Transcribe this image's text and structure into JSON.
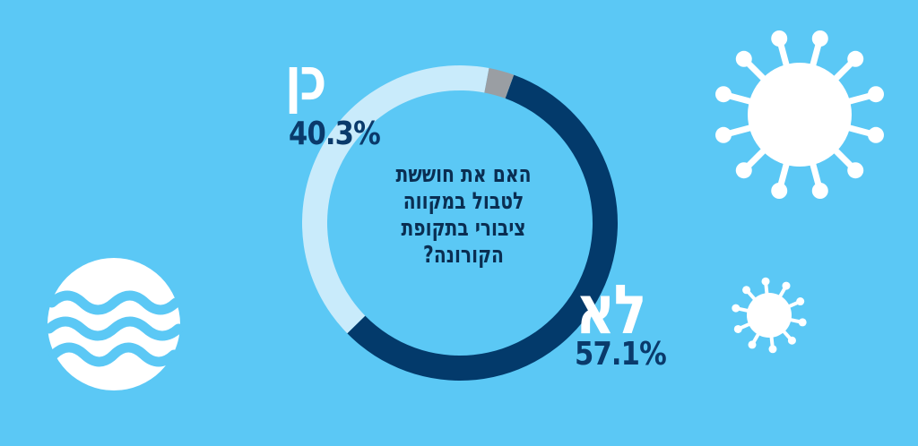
{
  "chart_data": {
    "type": "pie",
    "style": "donut",
    "title": "האם את חוששת לטבול במקווה ציבורי בתקופת הקורונה?",
    "slices": [
      {
        "label": "לא",
        "value": 57.1,
        "value_text": "57.1%",
        "color": "#033a6b"
      },
      {
        "label": "כן",
        "value": 40.3,
        "value_text": "40.3%",
        "color": "#c9ebfb"
      },
      {
        "label": "",
        "value": 2.6,
        "value_text": "",
        "color": "#9a9ea3"
      }
    ],
    "start_angle_deg": 20,
    "direction": "clockwise"
  },
  "colors": {
    "background": "#5bc8f5",
    "icons": "#ffffff"
  },
  "decorations": [
    "water-waves-icon",
    "virus-icon-large",
    "virus-icon-small"
  ]
}
